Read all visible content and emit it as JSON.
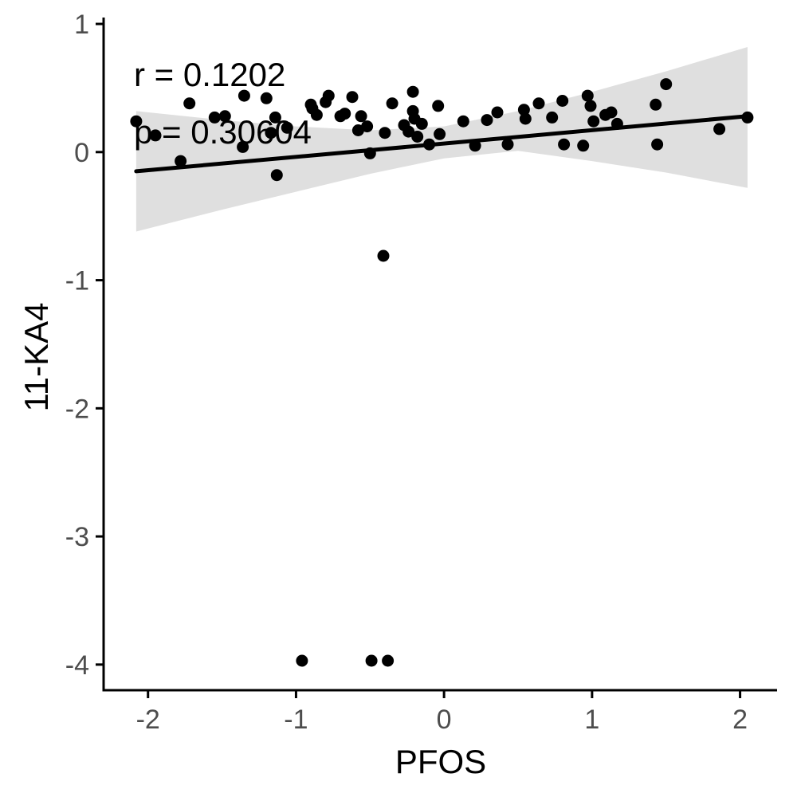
{
  "chart_data": {
    "type": "scatter",
    "xlabel": "PFOS",
    "ylabel": "11-KA4",
    "xlim": [
      -2.3,
      2.25
    ],
    "ylim": [
      -4.2,
      1.05
    ],
    "x_ticks": [
      -2,
      -1,
      0,
      1,
      2
    ],
    "x_tick_labels": [
      "-2",
      "-1",
      "0",
      "1",
      "2"
    ],
    "y_ticks": [
      1,
      0,
      -1,
      -2,
      -3,
      -4
    ],
    "y_tick_labels": [
      "1",
      "0",
      "-1",
      "-2",
      "-3",
      "-4"
    ],
    "grid": false,
    "annotations": {
      "r": "r = 0.1202",
      "p": "p = 0.30604"
    },
    "colors": {
      "points": "#000000",
      "fit_line": "#000000",
      "confidence_band": "#d9d9d9",
      "axis": "#000000",
      "tick_text": "#4d4d4d"
    },
    "fit_line": {
      "x": [
        -2.08,
        2.05
      ],
      "y": [
        -0.15,
        0.28
      ]
    },
    "confidence_band": {
      "x": [
        -2.08,
        -1.5,
        -1.0,
        -0.5,
        0.0,
        0.5,
        1.0,
        1.5,
        2.05
      ],
      "upper": [
        0.32,
        0.25,
        0.2,
        0.17,
        0.2,
        0.32,
        0.47,
        0.63,
        0.82
      ],
      "lower": [
        -0.62,
        -0.45,
        -0.31,
        -0.17,
        -0.05,
        0.01,
        -0.07,
        -0.16,
        -0.28
      ]
    },
    "points": [
      {
        "x": -2.08,
        "y": 0.24
      },
      {
        "x": -1.95,
        "y": 0.13
      },
      {
        "x": -1.78,
        "y": -0.07
      },
      {
        "x": -1.72,
        "y": 0.38
      },
      {
        "x": -1.55,
        "y": 0.27
      },
      {
        "x": -1.48,
        "y": 0.28
      },
      {
        "x": -1.35,
        "y": 0.44
      },
      {
        "x": -1.36,
        "y": 0.04
      },
      {
        "x": -1.2,
        "y": 0.42
      },
      {
        "x": -1.17,
        "y": 0.15
      },
      {
        "x": -1.14,
        "y": 0.27
      },
      {
        "x": -1.13,
        "y": -0.18
      },
      {
        "x": -1.06,
        "y": 0.19
      },
      {
        "x": -0.9,
        "y": 0.37
      },
      {
        "x": -0.89,
        "y": 0.34
      },
      {
        "x": -0.86,
        "y": 0.29
      },
      {
        "x": -0.8,
        "y": 0.39
      },
      {
        "x": -0.78,
        "y": 0.44
      },
      {
        "x": -0.7,
        "y": 0.28
      },
      {
        "x": -0.67,
        "y": 0.3
      },
      {
        "x": -0.62,
        "y": 0.43
      },
      {
        "x": -0.58,
        "y": 0.17
      },
      {
        "x": -0.56,
        "y": 0.28
      },
      {
        "x": -0.52,
        "y": 0.2
      },
      {
        "x": -0.5,
        "y": -0.01
      },
      {
        "x": -0.4,
        "y": 0.15
      },
      {
        "x": -0.35,
        "y": 0.38
      },
      {
        "x": -0.27,
        "y": 0.21
      },
      {
        "x": -0.24,
        "y": 0.16
      },
      {
        "x": -0.21,
        "y": 0.47
      },
      {
        "x": -0.21,
        "y": 0.32
      },
      {
        "x": -0.2,
        "y": 0.26
      },
      {
        "x": -0.18,
        "y": 0.12
      },
      {
        "x": -0.15,
        "y": 0.22
      },
      {
        "x": -0.1,
        "y": 0.06
      },
      {
        "x": -0.04,
        "y": 0.36
      },
      {
        "x": -0.03,
        "y": 0.14
      },
      {
        "x": 0.13,
        "y": 0.24
      },
      {
        "x": 0.21,
        "y": 0.05
      },
      {
        "x": 0.29,
        "y": 0.25
      },
      {
        "x": 0.36,
        "y": 0.31
      },
      {
        "x": 0.43,
        "y": 0.06
      },
      {
        "x": 0.54,
        "y": 0.33
      },
      {
        "x": 0.55,
        "y": 0.26
      },
      {
        "x": 0.64,
        "y": 0.38
      },
      {
        "x": 0.73,
        "y": 0.27
      },
      {
        "x": 0.8,
        "y": 0.4
      },
      {
        "x": 0.81,
        "y": 0.06
      },
      {
        "x": 0.94,
        "y": 0.05
      },
      {
        "x": 0.97,
        "y": 0.44
      },
      {
        "x": 0.99,
        "y": 0.36
      },
      {
        "x": 1.01,
        "y": 0.24
      },
      {
        "x": 1.09,
        "y": 0.29
      },
      {
        "x": 1.13,
        "y": 0.31
      },
      {
        "x": 1.17,
        "y": 0.22
      },
      {
        "x": 1.43,
        "y": 0.37
      },
      {
        "x": 1.44,
        "y": 0.06
      },
      {
        "x": 1.5,
        "y": 0.53
      },
      {
        "x": 1.86,
        "y": 0.18
      },
      {
        "x": 2.05,
        "y": 0.27
      },
      {
        "x": -0.41,
        "y": -0.81
      },
      {
        "x": -0.96,
        "y": -3.97
      },
      {
        "x": -0.49,
        "y": -3.97
      },
      {
        "x": -0.38,
        "y": -3.97
      }
    ]
  }
}
